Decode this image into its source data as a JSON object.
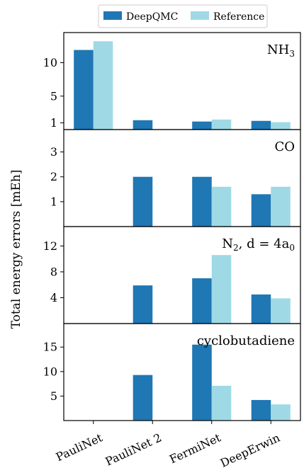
{
  "chart_data": {
    "type": "bar",
    "ylabel": "Total energy errors [mEh]",
    "categories": [
      "PauliNet",
      "PauliNet 2",
      "FermiNet",
      "DeepErwin"
    ],
    "legend": {
      "placement": "top-center",
      "entries": [
        {
          "name": "DeepQMC",
          "color": "#1f77b4"
        },
        {
          "name": "Reference",
          "color": "#9fd9e6"
        }
      ]
    },
    "panels": [
      {
        "label": "NH₃",
        "ylim": [
          0,
          14.5
        ],
        "yticks": [
          1,
          5,
          10
        ],
        "series": [
          {
            "name": "DeepQMC",
            "values": [
              11.9,
              1.4,
              1.2,
              1.3
            ]
          },
          {
            "name": "Reference",
            "values": [
              13.2,
              null,
              1.5,
              1.1
            ]
          }
        ]
      },
      {
        "label": "CO",
        "ylim": [
          0,
          3.9
        ],
        "yticks": [
          1,
          2,
          3
        ],
        "series": [
          {
            "name": "DeepQMC",
            "values": [
              null,
              2.0,
              2.0,
              1.3
            ]
          },
          {
            "name": "Reference",
            "values": [
              null,
              null,
              1.6,
              1.6
            ]
          }
        ]
      },
      {
        "label": "N₂, d = 4a₀",
        "ylim": [
          0,
          15
        ],
        "yticks": [
          4,
          8,
          12
        ],
        "series": [
          {
            "name": "DeepQMC",
            "values": [
              null,
              5.9,
              7.0,
              4.5
            ]
          },
          {
            "name": "Reference",
            "values": [
              null,
              null,
              10.6,
              3.9
            ]
          }
        ]
      },
      {
        "label": "cyclobutadiene",
        "ylim": [
          0,
          19.8
        ],
        "yticks": [
          5,
          10,
          15
        ],
        "series": [
          {
            "name": "DeepQMC",
            "values": [
              null,
              9.3,
              15.5,
              4.2
            ]
          },
          {
            "name": "Reference",
            "values": [
              null,
              null,
              7.1,
              3.3
            ]
          }
        ]
      }
    ]
  }
}
